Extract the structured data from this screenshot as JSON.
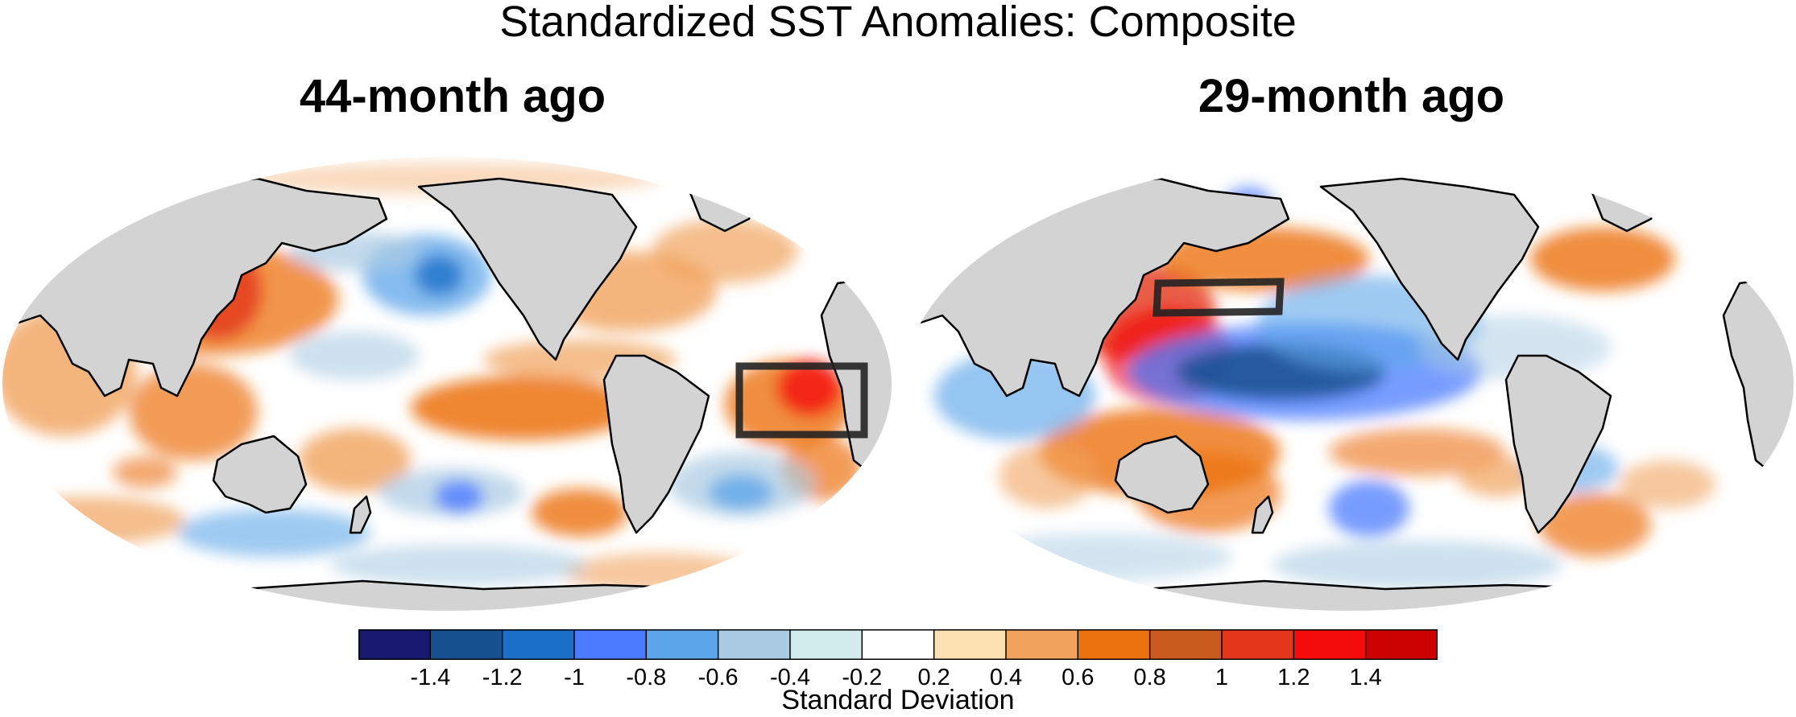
{
  "figure": {
    "title": "Standardized SST Anomalies: Composite",
    "panels": [
      {
        "title": "44-month ago"
      },
      {
        "title": "29-month ago"
      }
    ]
  },
  "colorbar": {
    "title": "Standard Deviation",
    "labels": [
      "-1.4",
      "-1.2",
      "-1",
      "-0.8",
      "-0.6",
      "-0.4",
      "-0.2",
      "0.2",
      "0.4",
      "0.6",
      "0.8",
      "1",
      "1.2",
      "1.4"
    ],
    "colors": [
      "#171a6e",
      "#17508f",
      "#1c70c9",
      "#4b7bff",
      "#5ea6ea",
      "#aacbe3",
      "#d2ecee",
      "#ffffff",
      "#fee1b3",
      "#f1a35d",
      "#ec720d",
      "#ca5b1e",
      "#e4361b",
      "#f40b0b",
      "#cc0202"
    ]
  },
  "colors": {
    "land": "#d3d3d3",
    "coast": "#000000",
    "box": "#222222"
  }
}
